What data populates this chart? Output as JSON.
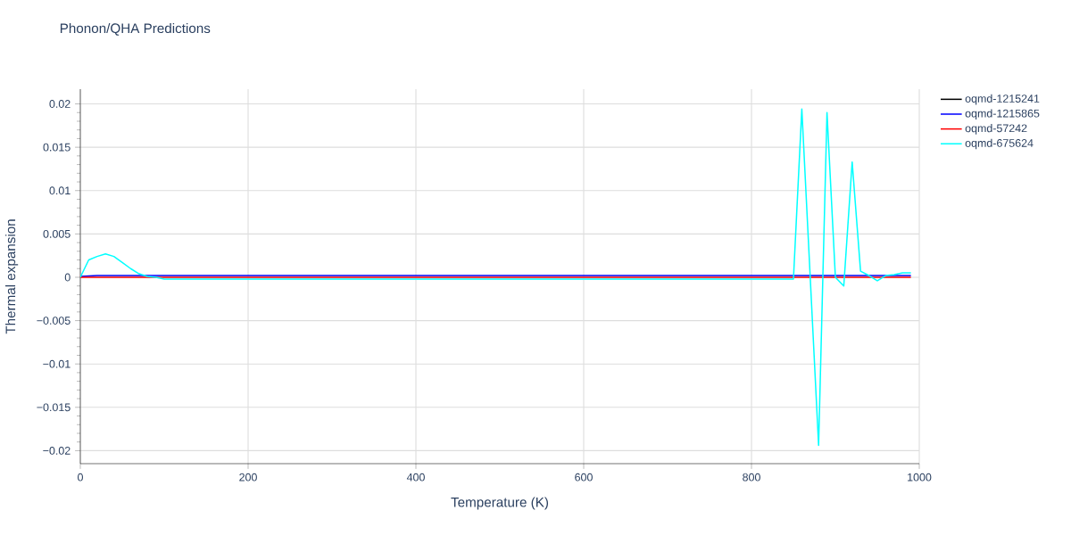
{
  "chart_data": {
    "type": "line",
    "title": "Phonon/QHA Predictions",
    "xlabel": "Temperature (K)",
    "ylabel": "Thermal expansion",
    "xlim": [
      0,
      1000
    ],
    "xticks": [
      0,
      200,
      400,
      600,
      800,
      1000
    ],
    "ylim": [
      -0.0215,
      0.0217
    ],
    "yticks": [
      {
        "value": -0.02,
        "label": "−0.02"
      },
      {
        "value": -0.015,
        "label": "−0.015"
      },
      {
        "value": -0.01,
        "label": "−0.01"
      },
      {
        "value": -0.005,
        "label": "−0.005"
      },
      0,
      0.005,
      0.01,
      0.015,
      0.02
    ],
    "grid": true,
    "legend": "top right",
    "series": [
      {
        "name": "oqmd-1215241",
        "color": "#000000"
      },
      {
        "name": "oqmd-1215865",
        "color": "#0000ff",
        "x": [
          0,
          20,
          50,
          100,
          200,
          400,
          600,
          800,
          990
        ],
        "values": [
          0.0001,
          0.0002,
          0.0002,
          0.0002,
          0.0002,
          0.0002,
          0.0002,
          0.0002,
          0.0002
        ]
      },
      {
        "name": "oqmd-57242",
        "color": "#ff0000",
        "x": [
          0,
          20,
          50,
          100,
          200,
          400,
          600,
          800,
          990
        ],
        "values": [
          0,
          0,
          0,
          0,
          0,
          0,
          0,
          0,
          0
        ]
      },
      {
        "name": "oqmd-675624",
        "color": "#00ffff",
        "x": [
          0,
          10,
          20,
          30,
          40,
          50,
          60,
          70,
          80,
          90,
          100,
          200,
          400,
          600,
          800,
          850,
          860,
          870,
          880,
          890,
          900,
          910,
          920,
          930,
          940,
          950,
          960,
          970,
          980,
          990
        ],
        "values": [
          0,
          0.002,
          0.0024,
          0.0027,
          0.0024,
          0.0017,
          0.001,
          0.0004,
          0.0001,
          0,
          -0.0002,
          -0.0002,
          -0.0002,
          -0.0002,
          -0.0002,
          -0.0002,
          0.0194,
          0,
          -0.0194,
          0.019,
          0,
          -0.001,
          0.0133,
          0.0007,
          0.0002,
          -0.0004,
          0.0002,
          0.0003,
          0.0005,
          0.0005
        ]
      }
    ]
  }
}
